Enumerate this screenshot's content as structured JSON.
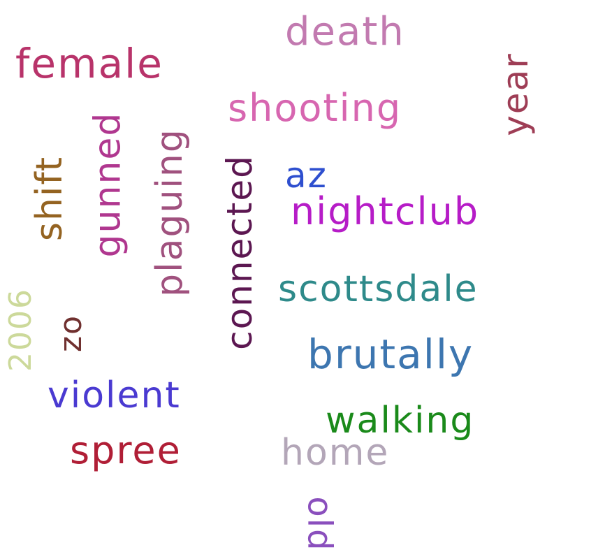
{
  "words": [
    {
      "text": "female",
      "color": "#b8336a"
    },
    {
      "text": "death",
      "color": "#c27ab0"
    },
    {
      "text": "shooting",
      "color": "#d766b0"
    },
    {
      "text": "year",
      "color": "#9e3d55"
    },
    {
      "text": "gunned",
      "color": "#b0378f"
    },
    {
      "text": "shift",
      "color": "#946321"
    },
    {
      "text": "plaguing",
      "color": "#a0517e"
    },
    {
      "text": "connected",
      "color": "#5c1751"
    },
    {
      "text": "az",
      "color": "#2e4fcf"
    },
    {
      "text": "nightclub",
      "color": "#b61cc7"
    },
    {
      "text": "scottsdale",
      "color": "#2e8a8a"
    },
    {
      "text": "2006",
      "color": "#ccd99a"
    },
    {
      "text": "zo",
      "color": "#70302f"
    },
    {
      "text": "brutally",
      "color": "#3d76b0"
    },
    {
      "text": "violent",
      "color": "#4a3ad1"
    },
    {
      "text": "walking",
      "color": "#1a8a1a"
    },
    {
      "text": "spree",
      "color": "#b01e36"
    },
    {
      "text": "home",
      "color": "#b3a6b8"
    },
    {
      "text": "old",
      "color": "#8a4fbd"
    }
  ]
}
